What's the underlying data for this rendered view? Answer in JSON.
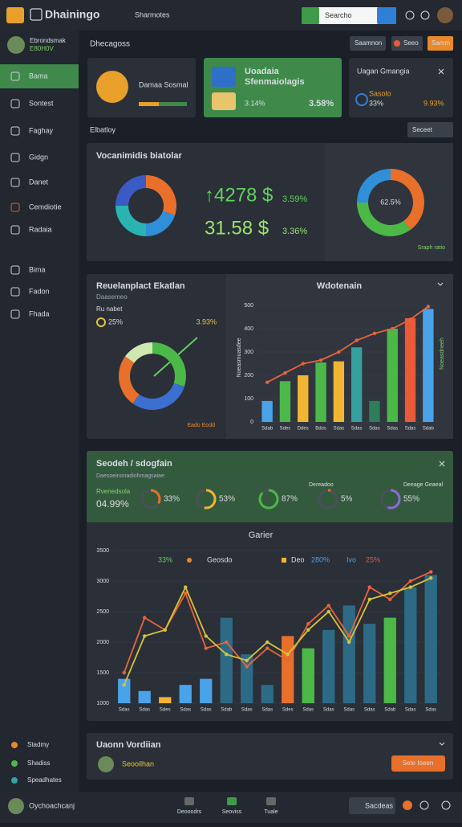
{
  "header": {
    "app_name": "Dhainingo",
    "menu": "Sharmotes",
    "search": "Searcho"
  },
  "sidebar": {
    "user_name": "Ebrondsmak",
    "user_id": "E80H0V",
    "nav": [
      "Bama",
      "Sontest",
      "Faghay",
      "Gidgn",
      "Danet",
      "Cemdiotie",
      "Radaia",
      "Bima",
      "Fadon",
      "Fhada"
    ],
    "footer_items": [
      "Stadmy",
      "Shadiss",
      "Speadhates"
    ]
  },
  "page": {
    "title": "Dhecagoss",
    "buttons": [
      "Saamnon",
      "Seeo",
      "Samm"
    ],
    "section_label": "Elbatloy",
    "dropdown": "Seceet"
  },
  "cards": [
    {
      "title": "Damaa Sosmal"
    },
    {
      "title": "Uoadaia",
      "subtitle": "Sfenmaiolagis",
      "stat1": "3.14%",
      "stat2": "3.58%"
    },
    {
      "title": "Uagan Gmangia",
      "subtitle": "Sasolo",
      "stat1": "33%",
      "stat2": "9.93%"
    }
  ],
  "kpis": [
    {
      "value": "↑4278 $",
      "change": "3.59%"
    },
    {
      "value": "31.58 $",
      "change": "3.36%"
    }
  ],
  "section2": {
    "label": "Ru nabet",
    "stat": "25%",
    "change": "3.93%",
    "footnote": "Eado Eodd"
  },
  "section3": {
    "title": "Seodeh / sdogfain",
    "subtitle": "Daesoeinonadiohmagsaiae",
    "stat_label": "Rvenedsola",
    "stat": "04.99%",
    "right_labels": [
      "Dereadoo",
      "Deeage Geaeal"
    ]
  },
  "section4": {
    "title": "Uaonn Vordiian",
    "user": "Seooilhan",
    "button": "Sete foeen"
  },
  "bottom_bar": {
    "user": "Oychoachcanj",
    "tabs": [
      "Deooodrs",
      "Seoviss",
      "Tuale"
    ],
    "button": "Sacdeas"
  },
  "chart_data": [
    {
      "type": "pie",
      "title": "Vocanimidis biatolar",
      "values": [
        30,
        20,
        25,
        25
      ],
      "colors": [
        "#e8702a",
        "#2f8fd8",
        "#2ab3b0",
        "#3b5bc4"
      ]
    },
    {
      "type": "pie",
      "center_label": "62.5%",
      "legend": "Sraph ratio",
      "values": [
        40,
        35,
        25
      ],
      "colors": [
        "#e8702a",
        "#4cb848",
        "#2f8fd8"
      ]
    },
    {
      "type": "pie",
      "title": "Reuelanplact Ekatlan",
      "subtitle": "Daasemeo",
      "values": [
        30,
        30,
        25,
        15
      ],
      "colors": [
        "#4cb848",
        "#3b6fd0",
        "#e8702a",
        "#cfe8b0"
      ]
    },
    {
      "type": "bar_line",
      "title": "Wdotenain",
      "y_label": "Noeasmuasdee",
      "y2_label": "Noeasdneeh",
      "categories": [
        "Sdab",
        "Sdes",
        "Ddes",
        "Bdos",
        "Sdas",
        "Sdas",
        "Sdas",
        "Sdas",
        "Sdas",
        "Sdab"
      ],
      "values": [
        90,
        175,
        200,
        255,
        260,
        320,
        90,
        400,
        445,
        485
      ],
      "colors": [
        "#4aa3e8",
        "#4cb848",
        "#f2b531",
        "#4cb848",
        "#f2b531",
        "#35a0a0",
        "#2e7d5b",
        "#4cb848",
        "#e85a3a",
        "#4aa3e8"
      ],
      "lines": [
        {
          "color": "#e8643a",
          "values": [
            170,
            210,
            250,
            265,
            300,
            350,
            380,
            400,
            440,
            495
          ]
        }
      ],
      "ylim": [
        0,
        500
      ],
      "yticks": [
        0,
        100,
        200,
        300,
        400,
        500
      ]
    },
    {
      "type": "rings",
      "values": [
        33,
        53,
        87,
        5,
        55
      ],
      "value_labels": [
        "33%",
        "53%",
        "87%",
        "5%",
        "55%"
      ],
      "colors": [
        "#e8702a",
        "#f2b531",
        "#4cb848",
        "#e8643a",
        "#8a6cd8"
      ]
    },
    {
      "type": "bar_line",
      "title": "Garier",
      "legend": [
        "33%",
        "Geosdo",
        "Deo",
        "280%",
        "Ivo",
        "25%"
      ],
      "categories": [
        "Sdas",
        "Sdas",
        "Sdes",
        "Sdas",
        "Sdas",
        "Sdab",
        "Sdas",
        "Sdas",
        "Sdes",
        "Sdas",
        "Sdas",
        "Sdas",
        "Sdas",
        "Sdab",
        "Sdas",
        "Sdas"
      ],
      "values": [
        1400,
        1200,
        1100,
        1300,
        1400,
        2400,
        1800,
        1300,
        2100,
        1900,
        2200,
        2600,
        2300,
        2400,
        2900,
        3100
      ],
      "colors": [
        "#4aa3e8",
        "#4aa3e8",
        "#f2b531",
        "#4aa3e8",
        "#4aa3e8",
        "#2d6a86",
        "#2d6a86",
        "#2d6a86",
        "#e8702a",
        "#4cb848",
        "#2d6a86",
        "#2d6a86",
        "#2d6a86",
        "#4cb848",
        "#2d6a86",
        "#2d6a86"
      ],
      "lines": [
        {
          "color": "#e8643a",
          "values": [
            1500,
            2400,
            2200,
            2800,
            1900,
            2000,
            1600,
            1900,
            1700,
            2300,
            2600,
            2100,
            2900,
            2700,
            3000,
            3150
          ]
        },
        {
          "color": "#d6c43a",
          "values": [
            1300,
            2100,
            2200,
            2900,
            2100,
            1800,
            1700,
            2000,
            1800,
            2200,
            2500,
            2000,
            2700,
            2800,
            2900,
            3050
          ]
        }
      ],
      "ylim": [
        1000,
        3500
      ],
      "yticks": [
        1000,
        1500,
        2000,
        2500,
        3000,
        3500
      ]
    }
  ]
}
